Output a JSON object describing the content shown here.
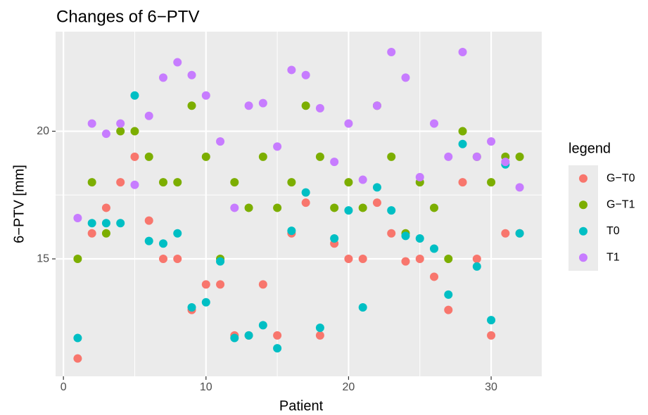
{
  "chart_data": {
    "type": "scatter",
    "title": "Changes of 6−PTV",
    "x_label": "Patient",
    "y_label": "6−PTV [mm]",
    "legend_title": "legend",
    "legend_position": "right",
    "grid": true,
    "xlim": [
      -0.55,
      33.55
    ],
    "xticks": [
      0,
      10,
      20,
      30
    ],
    "ylim": [
      10.4,
      23.9
    ],
    "yticks": [
      15,
      20
    ],
    "x": [
      1,
      2,
      3,
      4,
      5,
      6,
      7,
      8,
      9,
      10,
      11,
      12,
      13,
      14,
      15,
      16,
      17,
      18,
      19,
      20,
      21,
      22,
      23,
      24,
      25,
      26,
      27,
      28,
      29,
      30,
      31,
      32
    ],
    "series": [
      {
        "name": "G−T0",
        "color": "#F8766D",
        "values": [
          11.1,
          16,
          17,
          18,
          19,
          16.5,
          15,
          15,
          13,
          14,
          14,
          12,
          12,
          14,
          12,
          16,
          17.2,
          12,
          15.6,
          15,
          15,
          17.2,
          16,
          14.9,
          15,
          14.3,
          13,
          18,
          15,
          12,
          16,
          16
        ]
      },
      {
        "name": "G−T1",
        "color": "#7CAE00",
        "values": [
          15,
          18,
          16,
          20,
          20,
          19,
          18,
          18,
          21,
          19,
          15,
          18,
          17,
          19,
          17,
          18,
          21,
          19,
          17,
          18,
          17,
          21,
          19,
          16,
          18,
          17,
          15,
          20,
          19,
          18,
          19,
          19
        ]
      },
      {
        "name": "T0",
        "color": "#00BFC4",
        "values": [
          11.9,
          16.4,
          16.4,
          16.4,
          21.4,
          15.7,
          15.6,
          16,
          13.1,
          13.3,
          14.9,
          11.9,
          12,
          12.4,
          11.5,
          16.1,
          17.6,
          12.3,
          15.8,
          16.9,
          13.1,
          17.8,
          16.9,
          15.9,
          15.8,
          15.4,
          13.6,
          19.5,
          14.7,
          12.6,
          18.7,
          16
        ]
      },
      {
        "name": "T1",
        "color": "#C77CFF",
        "values": [
          16.6,
          20.3,
          19.9,
          20.3,
          17.9,
          20.6,
          22.1,
          22.7,
          22.2,
          21.4,
          19.6,
          17,
          21,
          21.1,
          19.4,
          22.4,
          22.2,
          20.9,
          18.8,
          20.3,
          18.1,
          21,
          23.1,
          22.1,
          18.2,
          20.3,
          19,
          23.1,
          19,
          19.6,
          18.8,
          17.8
        ]
      }
    ]
  }
}
